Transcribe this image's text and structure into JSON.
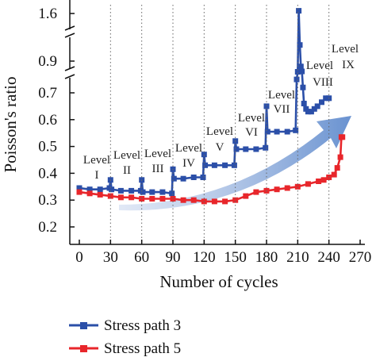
{
  "chart_data": {
    "type": "line",
    "title": "",
    "xlabel": "Number of cycles",
    "ylabel": "Poisson's ratio",
    "xlim": [
      0,
      270
    ],
    "xticks": [
      0,
      30,
      60,
      90,
      120,
      150,
      180,
      210,
      240,
      270
    ],
    "y_broken_axis": true,
    "y_segments": [
      {
        "range": [
          0.15,
          0.78
        ],
        "ticks": [
          0.2,
          0.3,
          0.4,
          0.5,
          0.6,
          0.7
        ]
      },
      {
        "range": [
          0.86,
          0.96
        ],
        "ticks": [
          0.9
        ]
      },
      {
        "range": [
          1.55,
          1.65
        ],
        "ticks": [
          1.6
        ]
      }
    ],
    "grid": false,
    "legend_position": "bottom",
    "levels": [
      {
        "word": "Level",
        "numeral": "I"
      },
      {
        "word": "Level",
        "numeral": "II"
      },
      {
        "word": "Level",
        "numeral": "III"
      },
      {
        "word": "Level",
        "numeral": "IV"
      },
      {
        "word": "Level",
        "numeral": "V"
      },
      {
        "word": "Level",
        "numeral": "VI"
      },
      {
        "word": "Level",
        "numeral": "VII"
      },
      {
        "word": "Level",
        "numeral": "VIII"
      },
      {
        "word": "Level",
        "numeral": "IX"
      }
    ],
    "series": [
      {
        "name": "Stress path 3",
        "color": "#2b4fa8",
        "marker": "square",
        "x": [
          0,
          10,
          20,
          29,
          30,
          31,
          40,
          50,
          59,
          60,
          61,
          70,
          80,
          89,
          90,
          91,
          100,
          110,
          119,
          120,
          121,
          130,
          140,
          149,
          150,
          151,
          160,
          170,
          179,
          180,
          181,
          190,
          200,
          208,
          209,
          210,
          211,
          212,
          213,
          214,
          215,
          216,
          218,
          220,
          223,
          226,
          229,
          233,
          237,
          240
        ],
        "y": [
          0.345,
          0.34,
          0.34,
          0.345,
          0.375,
          0.34,
          0.335,
          0.335,
          0.335,
          0.375,
          0.33,
          0.33,
          0.33,
          0.325,
          0.415,
          0.38,
          0.38,
          0.385,
          0.385,
          0.47,
          0.43,
          0.43,
          0.43,
          0.43,
          0.52,
          0.49,
          0.49,
          0.49,
          0.495,
          0.65,
          0.555,
          0.555,
          0.555,
          0.56,
          0.75,
          0.86,
          1.61,
          0.96,
          0.88,
          0.78,
          0.72,
          0.66,
          0.64,
          0.63,
          0.63,
          0.64,
          0.65,
          0.665,
          0.68,
          0.68
        ]
      },
      {
        "name": "Stress path 5",
        "color": "#e8262b",
        "marker": "square",
        "x": [
          0,
          10,
          20,
          30,
          40,
          50,
          60,
          70,
          80,
          90,
          100,
          110,
          120,
          130,
          140,
          150,
          160,
          170,
          180,
          190,
          200,
          210,
          220,
          230,
          235,
          240,
          245,
          248,
          251,
          252,
          253
        ],
        "y": [
          0.33,
          0.325,
          0.32,
          0.315,
          0.31,
          0.31,
          0.305,
          0.305,
          0.305,
          0.305,
          0.3,
          0.3,
          0.295,
          0.295,
          0.295,
          0.3,
          0.315,
          0.33,
          0.335,
          0.34,
          0.345,
          0.35,
          0.36,
          0.37,
          0.375,
          0.385,
          0.395,
          0.42,
          0.46,
          0.535,
          0.535
        ]
      }
    ]
  }
}
